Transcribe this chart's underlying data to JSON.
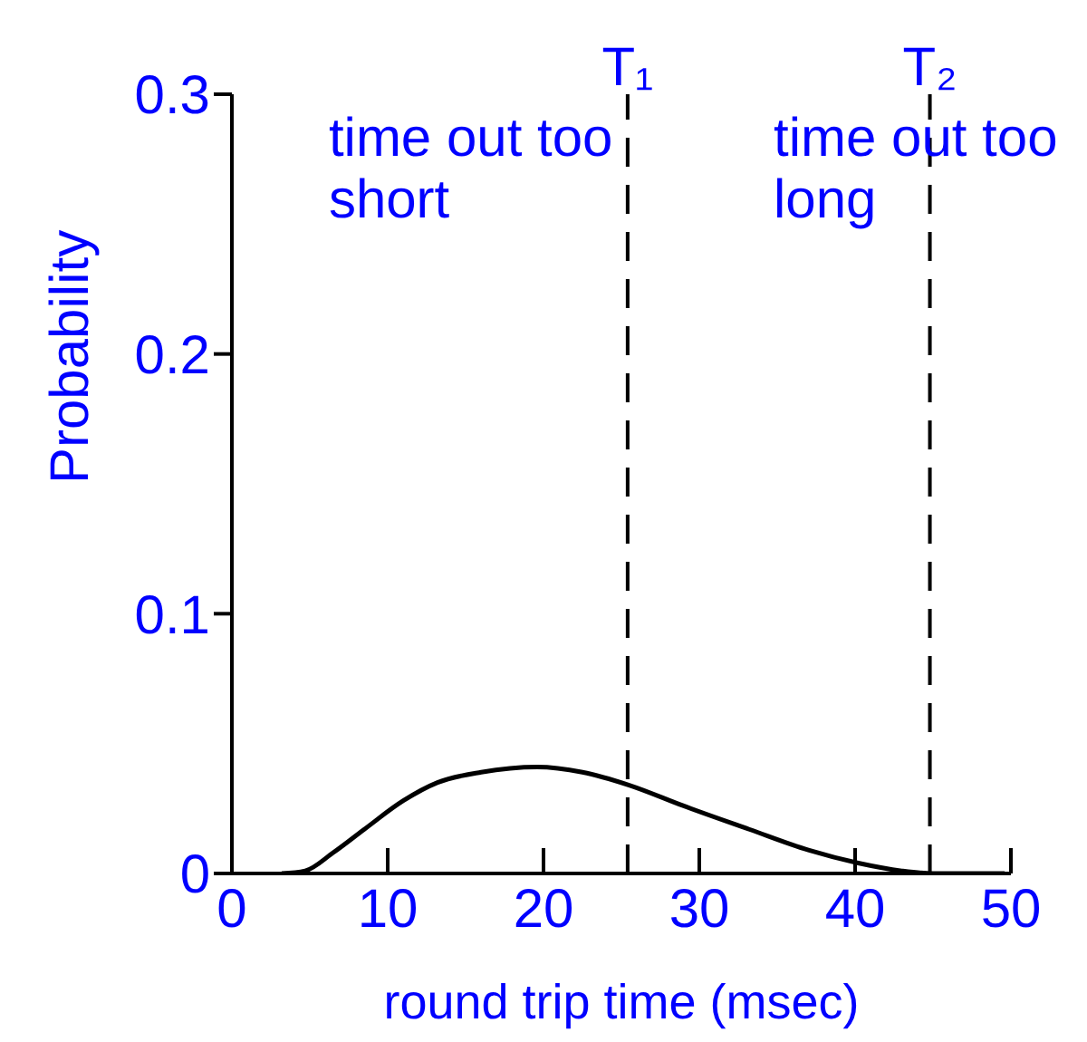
{
  "chart_data": {
    "type": "line",
    "xlabel": "round trip time (msec)",
    "ylabel": "Probability",
    "x": [
      3.2,
      4.7,
      6.5,
      8.5,
      11,
      13.2,
      16,
      19.6,
      22.5,
      25.5,
      29,
      33.2,
      37,
      40.2,
      43,
      45,
      47,
      49.6
    ],
    "series": [
      {
        "color": "#000000",
        "values": [
          0,
          0.001,
          0.008,
          0.017,
          0.028,
          0.035,
          0.039,
          0.041,
          0.039,
          0.034,
          0.026,
          0.017,
          0.009,
          0.004,
          0.001,
          0,
          0,
          0
        ]
      }
    ],
    "xlim": [
      0,
      50
    ],
    "xticks": [
      0,
      10,
      20,
      30,
      40,
      50
    ],
    "ylim": [
      0,
      0.3
    ],
    "yticks": [
      0,
      0.1,
      0.2,
      0.3
    ],
    "grid": false,
    "legend": false,
    "marker": "none",
    "line_style": "solid",
    "ref_lines": [
      {
        "axis": "x",
        "value": 25.4,
        "label": "T₁",
        "color": "#000000",
        "line_style": "dashed"
      },
      {
        "axis": "x",
        "value": 44.8,
        "label": "T₂",
        "color": "#000000",
        "line_style": "dashed"
      }
    ],
    "annotations": [
      "time out too short",
      "time out too long"
    ]
  }
}
